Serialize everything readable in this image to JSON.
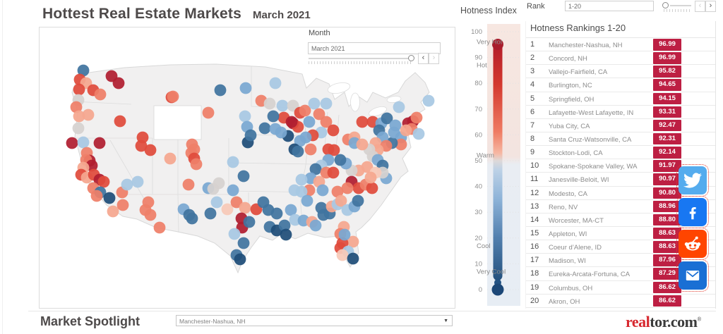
{
  "title": {
    "main": "Hottest Real Estate Markets",
    "date": "March 2021"
  },
  "month_filter": {
    "label": "Month",
    "value": "March 2021"
  },
  "rank_filter": {
    "label": "Rank",
    "value": "1-20"
  },
  "legend": {
    "title": "Hotness Index",
    "ticks": [
      100,
      90,
      80,
      70,
      60,
      50,
      40,
      30,
      20,
      10,
      0
    ],
    "zones": [
      {
        "text": "Very Hot",
        "value": 96
      },
      {
        "text": "Hot",
        "value": 87
      },
      {
        "text": "Warm",
        "value": 52
      },
      {
        "text": "Cool",
        "value": 17
      },
      {
        "text": "Very Cool",
        "value": 7
      }
    ]
  },
  "rankings": {
    "title": "Hotness Rankings 1-20",
    "rows": [
      {
        "rank": 1,
        "market": "Manchester-Nashua, NH",
        "score": "96.99"
      },
      {
        "rank": 2,
        "market": "Concord, NH",
        "score": "96.99"
      },
      {
        "rank": 3,
        "market": "Vallejo-Fairfield, CA",
        "score": "95.82"
      },
      {
        "rank": 4,
        "market": "Burlington, NC",
        "score": "94.65"
      },
      {
        "rank": 5,
        "market": "Springfield, OH",
        "score": "94.15"
      },
      {
        "rank": 6,
        "market": "Lafayette-West Lafayette, IN",
        "score": "93.31"
      },
      {
        "rank": 7,
        "market": "Yuba City, CA",
        "score": "92.47"
      },
      {
        "rank": 8,
        "market": "Santa Cruz-Watsonville, CA",
        "score": "92.31"
      },
      {
        "rank": 9,
        "market": "Stockton-Lodi, CA",
        "score": "92.14"
      },
      {
        "rank": 10,
        "market": "Spokane-Spokane Valley, WA",
        "score": "91.97"
      },
      {
        "rank": 11,
        "market": "Janesville-Beloit, WI",
        "score": "90.97"
      },
      {
        "rank": 12,
        "market": "Modesto, CA",
        "score": "90.80"
      },
      {
        "rank": 13,
        "market": "Reno, NV",
        "score": "88.96"
      },
      {
        "rank": 14,
        "market": "Worcester, MA-CT",
        "score": "88.80"
      },
      {
        "rank": 15,
        "market": "Appleton, WI",
        "score": "88.63"
      },
      {
        "rank": 16,
        "market": "Coeur d’Alene, ID",
        "score": "88.63"
      },
      {
        "rank": 17,
        "market": "Madison, WI",
        "score": "87.96"
      },
      {
        "rank": 18,
        "market": "Eureka-Arcata-Fortuna, CA",
        "score": "87.29"
      },
      {
        "rank": 19,
        "market": "Columbus, OH",
        "score": "86.62"
      },
      {
        "rank": 20,
        "market": "Akron, OH",
        "score": "86.62"
      }
    ]
  },
  "spotlight": {
    "title": "Market Spotlight",
    "selected_market": "Manchester-Nashua, NH"
  },
  "logo": {
    "prefix": "real",
    "suffix": "tor.com",
    "registered": "®"
  },
  "social": {
    "twitter_color": "#55acee",
    "facebook_color": "#1877f2",
    "reddit_color": "#ff4500",
    "email_color": "#1a6fd4"
  },
  "colors": {
    "badge": "#bd1f43",
    "title_text": "#4e4a4a",
    "logo_red": "#d7282f",
    "rod_top": "#a91c2c",
    "rod_bottom": "#1c4777"
  },
  "chart_data": {
    "type": "scatter-map",
    "title": "Hottest Real Estate Markets — March 2021",
    "basemap": "continental United States",
    "color_scale": {
      "field": "Hotness Index",
      "range": [
        0,
        100
      ],
      "zone_labels": [
        "Very Hot",
        "Hot",
        "Warm",
        "Cool",
        "Very Cool"
      ],
      "diverging_at": 50
    },
    "palette": {
      "R4": "#b01e30",
      "R3": "#e04b3c",
      "R2": "#ef7f68",
      "R1": "#f5a78f",
      "R0": "#f7c9b8",
      "G": "#d6d2d0",
      "B0": "#cfdeed",
      "B1": "#a8c8e3",
      "B2": "#7aa8d2",
      "B3": "#41749f",
      "B4": "#1f4e79"
    },
    "palette_value_ranges": {
      "R4": "90-100",
      "R3": "80-90",
      "R2": "68-80",
      "R1": "57-68",
      "R0": "50-57",
      "G": "~50",
      "B0": "43-50",
      "B1": "30-43",
      "B2": "18-30",
      "B3": "8-18",
      "B4": "0-8"
    },
    "points_format": [
      "x_px",
      "y_px",
      "palette_key"
    ],
    "points": [
      [
        62,
        61,
        "B3"
      ],
      [
        102,
        69,
        "R4"
      ],
      [
        112,
        79,
        "R4"
      ],
      [
        57,
        74,
        "R3"
      ],
      [
        66,
        79,
        "R1"
      ],
      [
        56,
        88,
        "R3"
      ],
      [
        76,
        89,
        "R3"
      ],
      [
        86,
        95,
        "R2"
      ],
      [
        55,
        103,
        "G"
      ],
      [
        52,
        113,
        "R2"
      ],
      [
        56,
        126,
        "R1"
      ],
      [
        69,
        124,
        "R1"
      ],
      [
        55,
        143,
        "G"
      ],
      [
        114,
        133,
        "R3"
      ],
      [
        187,
        99,
        "R3"
      ],
      [
        189,
        98,
        "R2"
      ],
      [
        239,
        121,
        "R2"
      ],
      [
        256,
        89,
        "B3"
      ],
      [
        292,
        86,
        "B2"
      ],
      [
        291,
        126,
        "B1"
      ],
      [
        294,
        141,
        "B2"
      ],
      [
        295,
        163,
        "B4"
      ],
      [
        46,
        164,
        "R4"
      ],
      [
        62,
        163,
        "B1"
      ],
      [
        85,
        164,
        "R4"
      ],
      [
        67,
        178,
        "R2"
      ],
      [
        71,
        189,
        "R4"
      ],
      [
        66,
        188,
        "R2"
      ],
      [
        74,
        196,
        "R4"
      ],
      [
        62,
        199,
        "R1"
      ],
      [
        59,
        209,
        "R3"
      ],
      [
        67,
        213,
        "R1"
      ],
      [
        77,
        209,
        "R3"
      ],
      [
        85,
        216,
        "R4"
      ],
      [
        91,
        219,
        "R3"
      ],
      [
        76,
        228,
        "R2"
      ],
      [
        86,
        234,
        "B3"
      ],
      [
        81,
        239,
        "R2"
      ],
      [
        99,
        242,
        "B4"
      ],
      [
        117,
        234,
        "R2"
      ],
      [
        124,
        223,
        "B1"
      ],
      [
        146,
        156,
        "R3"
      ],
      [
        144,
        168,
        "R3"
      ],
      [
        157,
        174,
        "R3"
      ],
      [
        185,
        186,
        "R1"
      ],
      [
        216,
        166,
        "R2"
      ],
      [
        219,
        173,
        "R2"
      ],
      [
        215,
        178,
        "R2"
      ],
      [
        219,
        186,
        "R3"
      ],
      [
        222,
        194,
        "R2"
      ],
      [
        104,
        261,
        "R1"
      ],
      [
        118,
        252,
        "R2"
      ],
      [
        150,
        259,
        "R2"
      ],
      [
        170,
        284,
        "R2"
      ],
      [
        274,
        191,
        "B1"
      ],
      [
        289,
        211,
        "B3"
      ],
      [
        274,
        231,
        "B2"
      ],
      [
        254,
        221,
        "G"
      ],
      [
        239,
        228,
        "B2"
      ],
      [
        246,
        229,
        "G"
      ],
      [
        211,
        223,
        "R2"
      ],
      [
        139,
        219,
        "B1"
      ],
      [
        334,
        79,
        "B1"
      ],
      [
        314,
        104,
        "R2"
      ],
      [
        326,
        108,
        "G"
      ],
      [
        344,
        111,
        "B1"
      ],
      [
        359,
        111,
        "G"
      ],
      [
        369,
        121,
        "R3"
      ],
      [
        346,
        128,
        "R3"
      ],
      [
        331,
        126,
        "B3"
      ],
      [
        376,
        118,
        "R2"
      ],
      [
        382,
        134,
        "B2"
      ],
      [
        359,
        136,
        "R4"
      ],
      [
        366,
        141,
        "R3"
      ],
      [
        389,
        108,
        "B1"
      ],
      [
        406,
        108,
        "B1"
      ],
      [
        396,
        123,
        "R2"
      ],
      [
        406,
        134,
        "R2"
      ],
      [
        416,
        146,
        "R3"
      ],
      [
        399,
        149,
        "B1"
      ],
      [
        387,
        153,
        "R3"
      ],
      [
        377,
        156,
        "B2"
      ],
      [
        369,
        161,
        "B2"
      ],
      [
        357,
        134,
        "R4"
      ],
      [
        319,
        143,
        "B3"
      ],
      [
        334,
        144,
        "B2"
      ],
      [
        352,
        154,
        "B4"
      ],
      [
        342,
        149,
        "B2"
      ],
      [
        299,
        153,
        "B3"
      ],
      [
        361,
        173,
        "B4"
      ],
      [
        366,
        176,
        "B3"
      ],
      [
        384,
        173,
        "R2"
      ],
      [
        409,
        173,
        "R3"
      ],
      [
        417,
        174,
        "R3"
      ],
      [
        437,
        159,
        "R2"
      ],
      [
        446,
        156,
        "R1"
      ],
      [
        457,
        134,
        "R3"
      ],
      [
        472,
        134,
        "R3"
      ],
      [
        484,
        136,
        "B2"
      ],
      [
        492,
        129,
        "B3"
      ],
      [
        504,
        139,
        "B2"
      ],
      [
        512,
        156,
        "B2"
      ],
      [
        522,
        136,
        "R4"
      ],
      [
        529,
        133,
        "R4"
      ],
      [
        534,
        128,
        "R2"
      ],
      [
        527,
        144,
        "R2"
      ],
      [
        519,
        146,
        "R1"
      ],
      [
        512,
        166,
        "R2"
      ],
      [
        499,
        164,
        "B3"
      ],
      [
        502,
        149,
        "B2"
      ],
      [
        509,
        113,
        "B1"
      ],
      [
        551,
        104,
        "B1"
      ],
      [
        537,
        151,
        "B1"
      ],
      [
        481,
        146,
        "B3"
      ],
      [
        486,
        156,
        "B2"
      ],
      [
        476,
        164,
        "R1"
      ],
      [
        491,
        168,
        "R2"
      ],
      [
        479,
        174,
        "R1"
      ],
      [
        467,
        173,
        "G"
      ],
      [
        446,
        164,
        "B2"
      ],
      [
        457,
        166,
        "R1"
      ],
      [
        472,
        183,
        "G"
      ],
      [
        479,
        188,
        "B2"
      ],
      [
        486,
        196,
        "B3"
      ],
      [
        464,
        198,
        "R1"
      ],
      [
        452,
        203,
        "R1"
      ],
      [
        442,
        203,
        "G"
      ],
      [
        434,
        193,
        "B2"
      ],
      [
        426,
        188,
        "B3"
      ],
      [
        409,
        188,
        "B2"
      ],
      [
        399,
        196,
        "B1"
      ],
      [
        391,
        201,
        "B3"
      ],
      [
        406,
        206,
        "R2"
      ],
      [
        416,
        206,
        "R3"
      ],
      [
        384,
        214,
        "B2"
      ],
      [
        371,
        216,
        "B1"
      ],
      [
        396,
        219,
        "R1"
      ],
      [
        382,
        231,
        "R2"
      ],
      [
        401,
        231,
        "B2"
      ],
      [
        371,
        233,
        "B1"
      ],
      [
        361,
        231,
        "B1"
      ],
      [
        442,
        219,
        "R4"
      ],
      [
        452,
        228,
        "R3"
      ],
      [
        462,
        223,
        "R2"
      ],
      [
        471,
        228,
        "R3"
      ],
      [
        436,
        228,
        "R2"
      ],
      [
        422,
        233,
        "R2"
      ],
      [
        491,
        214,
        "B2"
      ],
      [
        486,
        206,
        "G"
      ],
      [
        476,
        206,
        "R0"
      ],
      [
        469,
        213,
        "R1"
      ],
      [
        154,
        248,
        "R2"
      ],
      [
        157,
        266,
        "R2"
      ],
      [
        204,
        258,
        "B2"
      ],
      [
        216,
        271,
        "B3"
      ],
      [
        242,
        264,
        "B3"
      ],
      [
        251,
        248,
        "B1"
      ],
      [
        266,
        258,
        "R0"
      ],
      [
        279,
        248,
        "R2"
      ],
      [
        291,
        256,
        "R1"
      ],
      [
        286,
        271,
        "R4"
      ],
      [
        287,
        284,
        "R4"
      ],
      [
        297,
        276,
        "B3"
      ],
      [
        307,
        258,
        "R3"
      ],
      [
        317,
        248,
        "B3"
      ],
      [
        324,
        259,
        "B3"
      ],
      [
        336,
        264,
        "B3"
      ],
      [
        326,
        283,
        "B3"
      ],
      [
        336,
        288,
        "B4"
      ],
      [
        347,
        281,
        "B3"
      ],
      [
        349,
        294,
        "B4"
      ],
      [
        356,
        259,
        "B2"
      ],
      [
        362,
        273,
        "B1"
      ],
      [
        374,
        274,
        "B2"
      ],
      [
        379,
        246,
        "B2"
      ],
      [
        386,
        276,
        "R1"
      ],
      [
        391,
        281,
        "B2"
      ],
      [
        399,
        256,
        "B3"
      ],
      [
        402,
        266,
        "B3"
      ],
      [
        411,
        264,
        "B3"
      ],
      [
        414,
        254,
        "R1"
      ],
      [
        422,
        251,
        "B1"
      ],
      [
        427,
        246,
        "R1"
      ],
      [
        436,
        259,
        "B1"
      ],
      [
        446,
        254,
        "B2"
      ],
      [
        451,
        246,
        "B3"
      ],
      [
        431,
        283,
        "R1"
      ],
      [
        426,
        293,
        "R2"
      ],
      [
        444,
        304,
        "R1"
      ],
      [
        429,
        306,
        "R3"
      ],
      [
        426,
        313,
        "R3"
      ],
      [
        437,
        318,
        "B1"
      ],
      [
        429,
        323,
        "R0"
      ],
      [
        444,
        328,
        "B4"
      ],
      [
        432,
        294,
        "B2"
      ],
      [
        276,
        293,
        "B1"
      ],
      [
        289,
        306,
        "B3"
      ],
      [
        279,
        323,
        "B3"
      ],
      [
        284,
        329,
        "B4"
      ],
      [
        212,
        266,
        "B3"
      ]
    ]
  }
}
